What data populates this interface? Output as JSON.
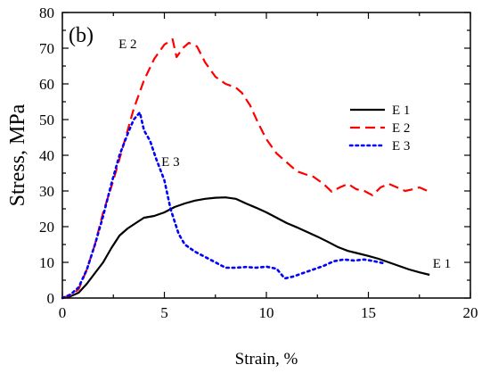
{
  "chart_data": {
    "type": "line",
    "panel_label": "(b)",
    "xlabel": "Strain, %",
    "ylabel": "Stress, MPa",
    "xlim": [
      0,
      20
    ],
    "ylim": [
      0,
      80
    ],
    "x_ticks": [
      "0",
      "5",
      "10",
      "15",
      "20"
    ],
    "y_ticks": [
      "0",
      "10",
      "20",
      "30",
      "40",
      "50",
      "60",
      "70",
      "80"
    ],
    "legend_position": "right",
    "series": [
      {
        "name": "E 1",
        "color": "#000000",
        "style": "solid",
        "points": [
          [
            0,
            0
          ],
          [
            0.4,
            0.5
          ],
          [
            0.8,
            1.5
          ],
          [
            1.2,
            4
          ],
          [
            1.6,
            7
          ],
          [
            2,
            10
          ],
          [
            2.4,
            14
          ],
          [
            2.8,
            17.5
          ],
          [
            3.2,
            19.5
          ],
          [
            3.6,
            21
          ],
          [
            4,
            22.5
          ],
          [
            4.5,
            23
          ],
          [
            5,
            24
          ],
          [
            5.5,
            25.5
          ],
          [
            6,
            26.5
          ],
          [
            6.5,
            27.3
          ],
          [
            7,
            27.8
          ],
          [
            7.5,
            28.1
          ],
          [
            8,
            28.2
          ],
          [
            8.5,
            27.8
          ],
          [
            9,
            26.5
          ],
          [
            9.5,
            25.3
          ],
          [
            10,
            24
          ],
          [
            10.5,
            22.5
          ],
          [
            11,
            21
          ],
          [
            11.5,
            19.8
          ],
          [
            12,
            18.5
          ],
          [
            12.5,
            17.2
          ],
          [
            13,
            15.8
          ],
          [
            13.5,
            14.3
          ],
          [
            14,
            13.2
          ],
          [
            14.5,
            12.5
          ],
          [
            15,
            11.8
          ],
          [
            15.5,
            11
          ],
          [
            16,
            10
          ],
          [
            16.5,
            9
          ],
          [
            17,
            8
          ],
          [
            17.5,
            7.2
          ],
          [
            18,
            6.5
          ]
        ]
      },
      {
        "name": "E 2",
        "color": "#ff0000",
        "style": "dashed",
        "points": [
          [
            0,
            0
          ],
          [
            0.5,
            1
          ],
          [
            0.8,
            2.5
          ],
          [
            1.2,
            8
          ],
          [
            1.6,
            15
          ],
          [
            2,
            24
          ],
          [
            2.5,
            33
          ],
          [
            3,
            43
          ],
          [
            3.5,
            53
          ],
          [
            4,
            61
          ],
          [
            4.5,
            67
          ],
          [
            5,
            71
          ],
          [
            5.4,
            72.5
          ],
          [
            5.6,
            67.5
          ],
          [
            5.9,
            70
          ],
          [
            6.2,
            71.5
          ],
          [
            6.6,
            70.5
          ],
          [
            7,
            66
          ],
          [
            7.5,
            62
          ],
          [
            8,
            60
          ],
          [
            8.5,
            59
          ],
          [
            8.8,
            57.5
          ],
          [
            9.2,
            54
          ],
          [
            9.6,
            49
          ],
          [
            10,
            44.5
          ],
          [
            10.5,
            40.5
          ],
          [
            11,
            38
          ],
          [
            11.5,
            35.5
          ],
          [
            12,
            34.5
          ],
          [
            12.3,
            34
          ],
          [
            12.8,
            32
          ],
          [
            13.2,
            29.8
          ],
          [
            13.6,
            31
          ],
          [
            14,
            32
          ],
          [
            14.4,
            30.5
          ],
          [
            14.8,
            30
          ],
          [
            15.2,
            28.8
          ],
          [
            15.6,
            31
          ],
          [
            16,
            32
          ],
          [
            16.4,
            31
          ],
          [
            16.8,
            30
          ],
          [
            17.2,
            30.5
          ],
          [
            17.5,
            31
          ],
          [
            17.9,
            30
          ]
        ]
      },
      {
        "name": "E 3",
        "color": "#0000ff",
        "style": "dotted",
        "points": [
          [
            0,
            0
          ],
          [
            0.4,
            1
          ],
          [
            0.8,
            3
          ],
          [
            1.2,
            8
          ],
          [
            1.6,
            15
          ],
          [
            2,
            23
          ],
          [
            2.4,
            32
          ],
          [
            2.8,
            40
          ],
          [
            3.2,
            46
          ],
          [
            3.5,
            50
          ],
          [
            3.8,
            52
          ],
          [
            4,
            47
          ],
          [
            4.3,
            44
          ],
          [
            4.6,
            39
          ],
          [
            5,
            33
          ],
          [
            5.3,
            25
          ],
          [
            5.7,
            18
          ],
          [
            6,
            15
          ],
          [
            6.5,
            13
          ],
          [
            7,
            11.5
          ],
          [
            7.5,
            10
          ],
          [
            8,
            8.5
          ],
          [
            8.5,
            8.5
          ],
          [
            9,
            8.7
          ],
          [
            9.5,
            8.5
          ],
          [
            10,
            8.8
          ],
          [
            10.5,
            8.2
          ],
          [
            10.9,
            5.5
          ],
          [
            11.3,
            6
          ],
          [
            11.8,
            7
          ],
          [
            12.3,
            8
          ],
          [
            12.8,
            9
          ],
          [
            13.3,
            10.3
          ],
          [
            13.8,
            10.8
          ],
          [
            14.3,
            10.5
          ],
          [
            14.8,
            10.8
          ],
          [
            15.3,
            10.3
          ],
          [
            15.7,
            9.8
          ]
        ]
      }
    ],
    "annotations": [
      {
        "text": "E 2",
        "x": 3.2,
        "y": 70
      },
      {
        "text": "E 3",
        "x": 5.3,
        "y": 37
      },
      {
        "text": "E 1",
        "x": 18.6,
        "y": 8.5
      }
    ],
    "legend": [
      {
        "name": "E 1",
        "color": "#000000",
        "style": "solid"
      },
      {
        "name": "E 2",
        "color": "#ff0000",
        "style": "dashed"
      },
      {
        "name": "E 3",
        "color": "#0000ff",
        "style": "dotted"
      }
    ]
  }
}
